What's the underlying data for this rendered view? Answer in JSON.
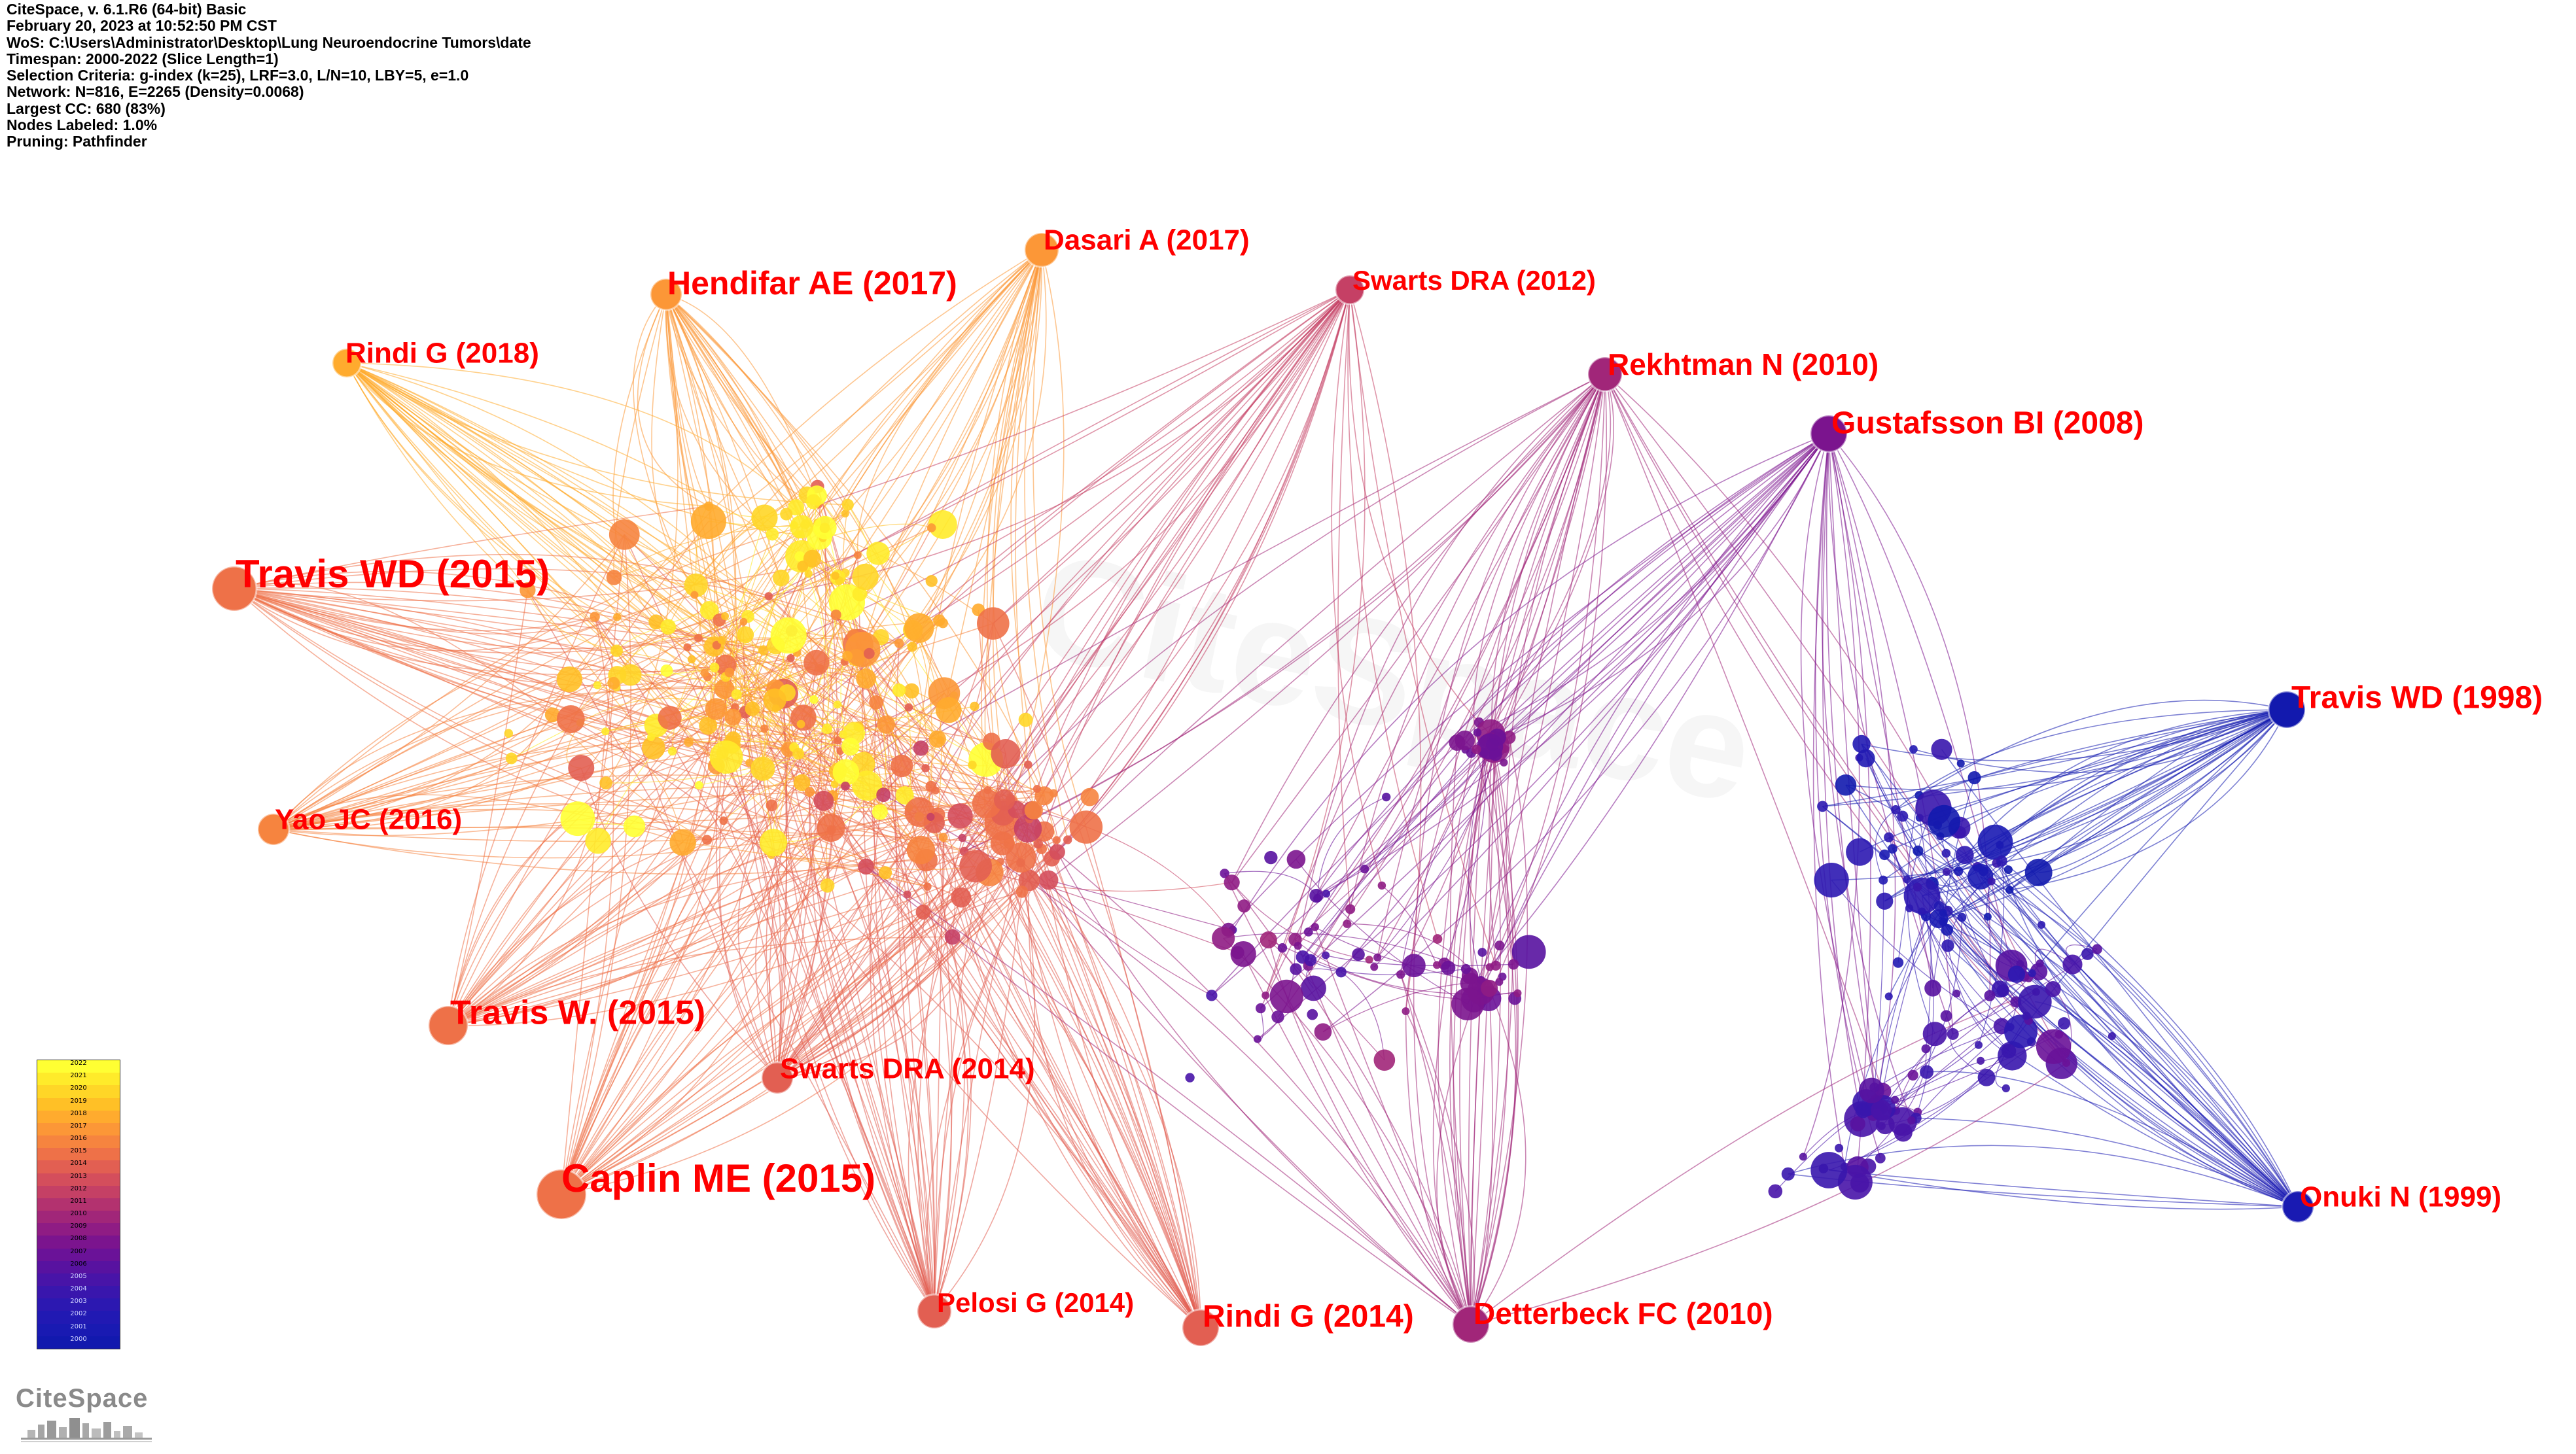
{
  "info_lines": [
    "CiteSpace, v. 6.1.R6 (64-bit) Basic",
    "February 20, 2023 at 10:52:50 PM CST",
    "WoS: C:\\Users\\Administrator\\Desktop\\Lung Neuroendocrine Tumors\\date",
    "Timespan: 2000-2022 (Slice Length=1)",
    "Selection Criteria: g-index (k=25), LRF=3.0, L/N=10, LBY=5, e=1.0",
    "Network: N=816, E=2265 (Density=0.0068)",
    "Largest CC: 680 (83%)",
    "Nodes Labeled: 1.0%",
    "Pruning: Pathfinder"
  ],
  "watermark": "CiteSpace",
  "logo_text": "CiteSpace",
  "legend_years": [
    "2022",
    "2021",
    "2020",
    "2019",
    "2018",
    "2017",
    "2016",
    "2015",
    "2014",
    "2013",
    "2012",
    "2011",
    "2010",
    "2009",
    "2008",
    "2007",
    "2006",
    "2005",
    "2004",
    "2003",
    "2002",
    "2001",
    "2000"
  ],
  "legend_colors": [
    "#ffff33",
    "#ffeb2a",
    "#ffd627",
    "#ffc026",
    "#ffab2e",
    "#fc9737",
    "#f6843f",
    "#ee7148",
    "#e25f52",
    "#d44e5c",
    "#c54065",
    "#b3326f",
    "#a12679",
    "#8f1c84",
    "#7b148e",
    "#6a1298",
    "#5812a0",
    "#4814a8",
    "#3916ad",
    "#2c18b1",
    "#2119b3",
    "#191ab2",
    "#1219ae"
  ],
  "labeled_nodes": [
    {
      "label": "Dasari A (2017)",
      "year": 2017
    },
    {
      "label": "Hendifar AE (2017)",
      "year": 2017
    },
    {
      "label": "Swarts DRA (2012)",
      "year": 2012
    },
    {
      "label": "Rindi G (2018)",
      "year": 2018
    },
    {
      "label": "Rekhtman N (2010)",
      "year": 2010
    },
    {
      "label": "Gustafsson BI (2008)",
      "year": 2008
    },
    {
      "label": "Travis WD (2015)",
      "year": 2015
    },
    {
      "label": "Travis WD (1998)",
      "year": 2000
    },
    {
      "label": "Yao JC (2016)",
      "year": 2016
    },
    {
      "label": "Travis W. (2015)",
      "year": 2015
    },
    {
      "label": "Swarts DRA (2014)",
      "year": 2014
    },
    {
      "label": "Caplin ME (2015)",
      "year": 2015
    },
    {
      "label": "Onuki N (1999)",
      "year": 2001
    },
    {
      "label": "Pelosi G (2014)",
      "year": 2014
    },
    {
      "label": "Rindi G (2014)",
      "year": 2014
    },
    {
      "label": "Detterbeck FC (2010)",
      "year": 2010
    }
  ]
}
